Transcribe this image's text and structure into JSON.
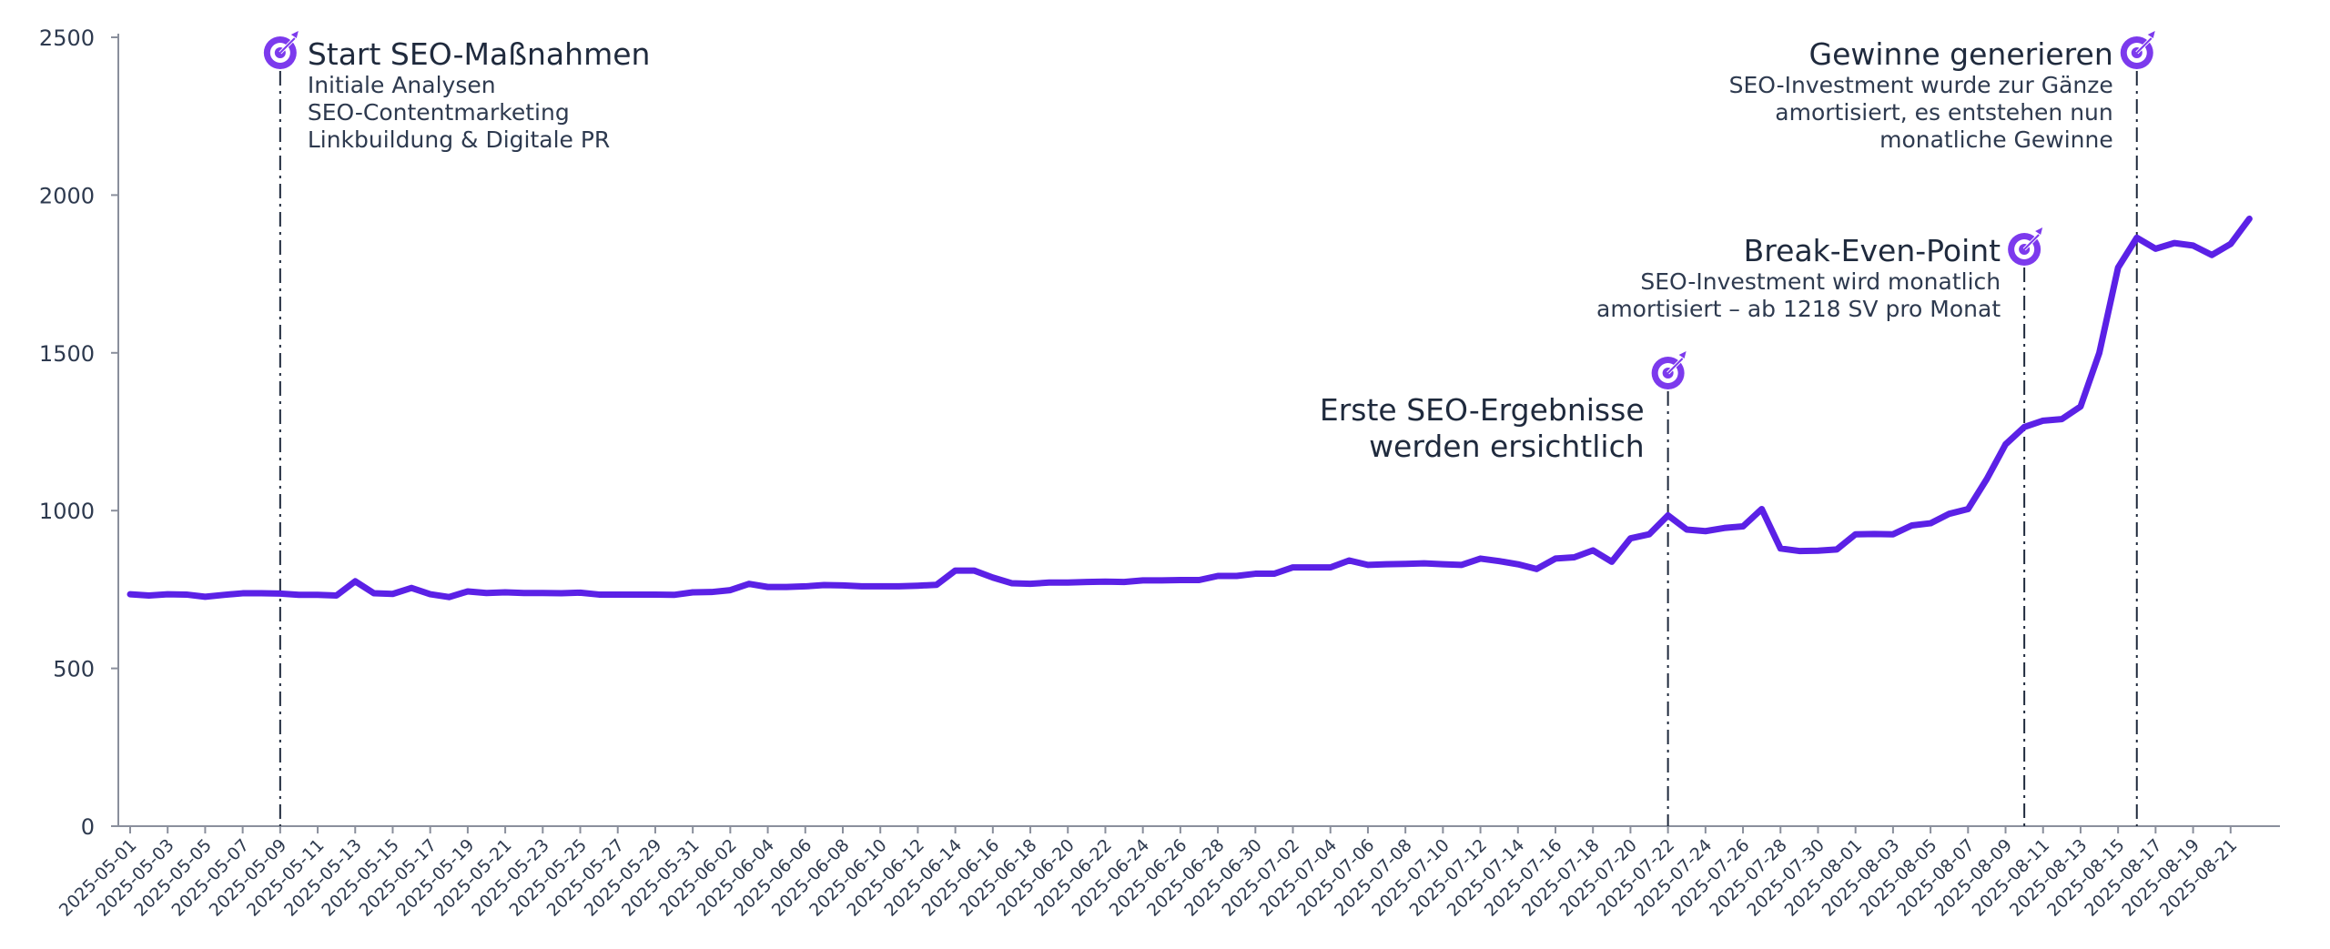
{
  "chart_data": {
    "type": "line",
    "title": "",
    "xlabel": "",
    "ylabel": "",
    "ylim": [
      0,
      2500
    ],
    "yticks": [
      0,
      500,
      1000,
      1500,
      2000,
      2500
    ],
    "grid": false,
    "colors": {
      "line": "#5b21e6",
      "axis": "#8a8f9c",
      "text": "#2e3a4f",
      "marker": "#7c3aed"
    },
    "x_start": "2025-05-01",
    "x_end": "2025-08-23",
    "xtick_labels": [
      "2025-05-01",
      "2025-05-03",
      "2025-05-05",
      "2025-05-07",
      "2025-05-09",
      "2025-05-11",
      "2025-05-13",
      "2025-05-15",
      "2025-05-17",
      "2025-05-19",
      "2025-05-21",
      "2025-05-23",
      "2025-05-25",
      "2025-05-27",
      "2025-05-29",
      "2025-05-31",
      "2025-06-02",
      "2025-06-04",
      "2025-06-06",
      "2025-06-08",
      "2025-06-10",
      "2025-06-12",
      "2025-06-14",
      "2025-06-16",
      "2025-06-18",
      "2025-06-20",
      "2025-06-22",
      "2025-06-24",
      "2025-06-26",
      "2025-06-28",
      "2025-06-30",
      "2025-07-02",
      "2025-07-04",
      "2025-07-06",
      "2025-07-08",
      "2025-07-10",
      "2025-07-12",
      "2025-07-14",
      "2025-07-16",
      "2025-07-18",
      "2025-07-20",
      "2025-07-22",
      "2025-07-24",
      "2025-07-26",
      "2025-07-28",
      "2025-07-30",
      "2025-08-01",
      "2025-08-03",
      "2025-08-05",
      "2025-08-07",
      "2025-08-09",
      "2025-08-11",
      "2025-08-13",
      "2025-08-15",
      "2025-08-17",
      "2025-08-19",
      "2025-08-21"
    ],
    "series": [
      {
        "name": "",
        "values": [
          735,
          731,
          735,
          734,
          727,
          733,
          738,
          738,
          737,
          733,
          733,
          731,
          776,
          738,
          736,
          755,
          735,
          726,
          744,
          739,
          741,
          739,
          739,
          738,
          740,
          734,
          734,
          734,
          734,
          733,
          741,
          742,
          748,
          768,
          758,
          758,
          760,
          764,
          763,
          760,
          760,
          760,
          762,
          765,
          810,
          810,
          788,
          770,
          768,
          772,
          772,
          774,
          775,
          774,
          779,
          779,
          780,
          780,
          793,
          793,
          800,
          800,
          820,
          820,
          820,
          842,
          828,
          830,
          831,
          833,
          830,
          828,
          848,
          840,
          830,
          815,
          848,
          852,
          874,
          838,
          912,
          925,
          985,
          940,
          935,
          945,
          950,
          1005,
          880,
          872,
          873,
          877,
          925,
          926,
          925,
          953,
          960,
          990,
          1005,
          1100,
          1210,
          1265,
          1285,
          1290,
          1330,
          1500,
          1770,
          1865,
          1830,
          1848,
          1840,
          1810,
          1845,
          1925
        ]
      }
    ],
    "annotations": [
      {
        "date": "2025-05-09",
        "title": "Start SEO-Maßnahmen",
        "lines": [
          "Initiale Analysen",
          "SEO-Contentmarketing",
          "Linkbuildung & Digitale PR"
        ],
        "align": "left"
      },
      {
        "date": "2025-07-22",
        "title": "Erste SEO-Ergebnisse",
        "lines": [
          "werden ersichtlich"
        ],
        "align": "right"
      },
      {
        "date": "2025-08-10",
        "title": "Break-Even-Point",
        "lines": [
          "SEO-Investment wird monatlich",
          "amortisiert – ab 1218 SV pro Monat"
        ],
        "align": "right"
      },
      {
        "date": "2025-08-16",
        "title": "Gewinne generieren",
        "lines": [
          "SEO-Investment wurde zur Gänze",
          "amortisiert, es entstehen nun",
          "monatliche Gewinne"
        ],
        "align": "right"
      }
    ]
  }
}
